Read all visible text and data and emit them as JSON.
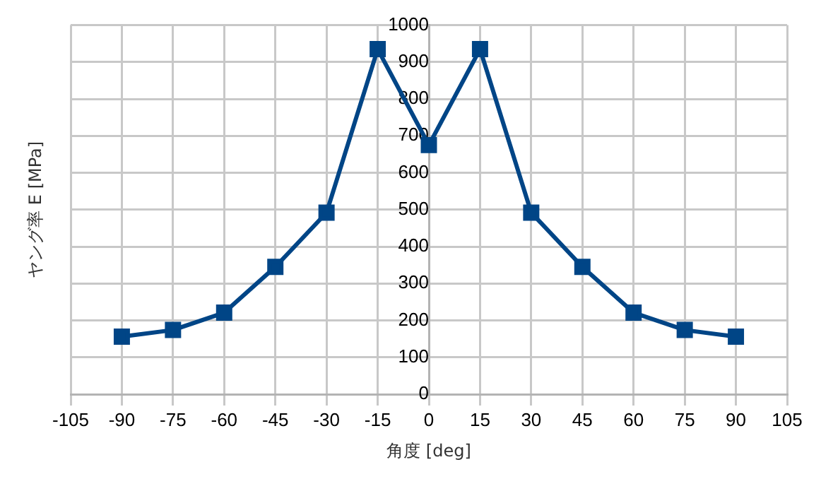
{
  "chart_data": {
    "type": "line",
    "xlabel": "角度 [deg]",
    "ylabel": "ヤング率 E [MPa]",
    "x": [
      -90,
      -75,
      -60,
      -45,
      -30,
      -15,
      0,
      15,
      30,
      45,
      60,
      75,
      90
    ],
    "series": [
      {
        "color": "#004586",
        "values": [
          156,
          174,
          221,
          345,
          492,
          935,
          675,
          935,
          492,
          345,
          221,
          174,
          156
        ]
      }
    ],
    "xlim": [
      -105,
      105
    ],
    "xticks": [
      -105,
      -90,
      -75,
      -60,
      -45,
      -30,
      -15,
      0,
      15,
      30,
      45,
      60,
      75,
      90,
      105
    ],
    "ylim": [
      0,
      1000
    ],
    "yticks": [
      0,
      100,
      200,
      300,
      400,
      500,
      600,
      700,
      800,
      900,
      1000
    ],
    "grid": true,
    "legend": false,
    "marker": "square",
    "line_style": "solid"
  }
}
